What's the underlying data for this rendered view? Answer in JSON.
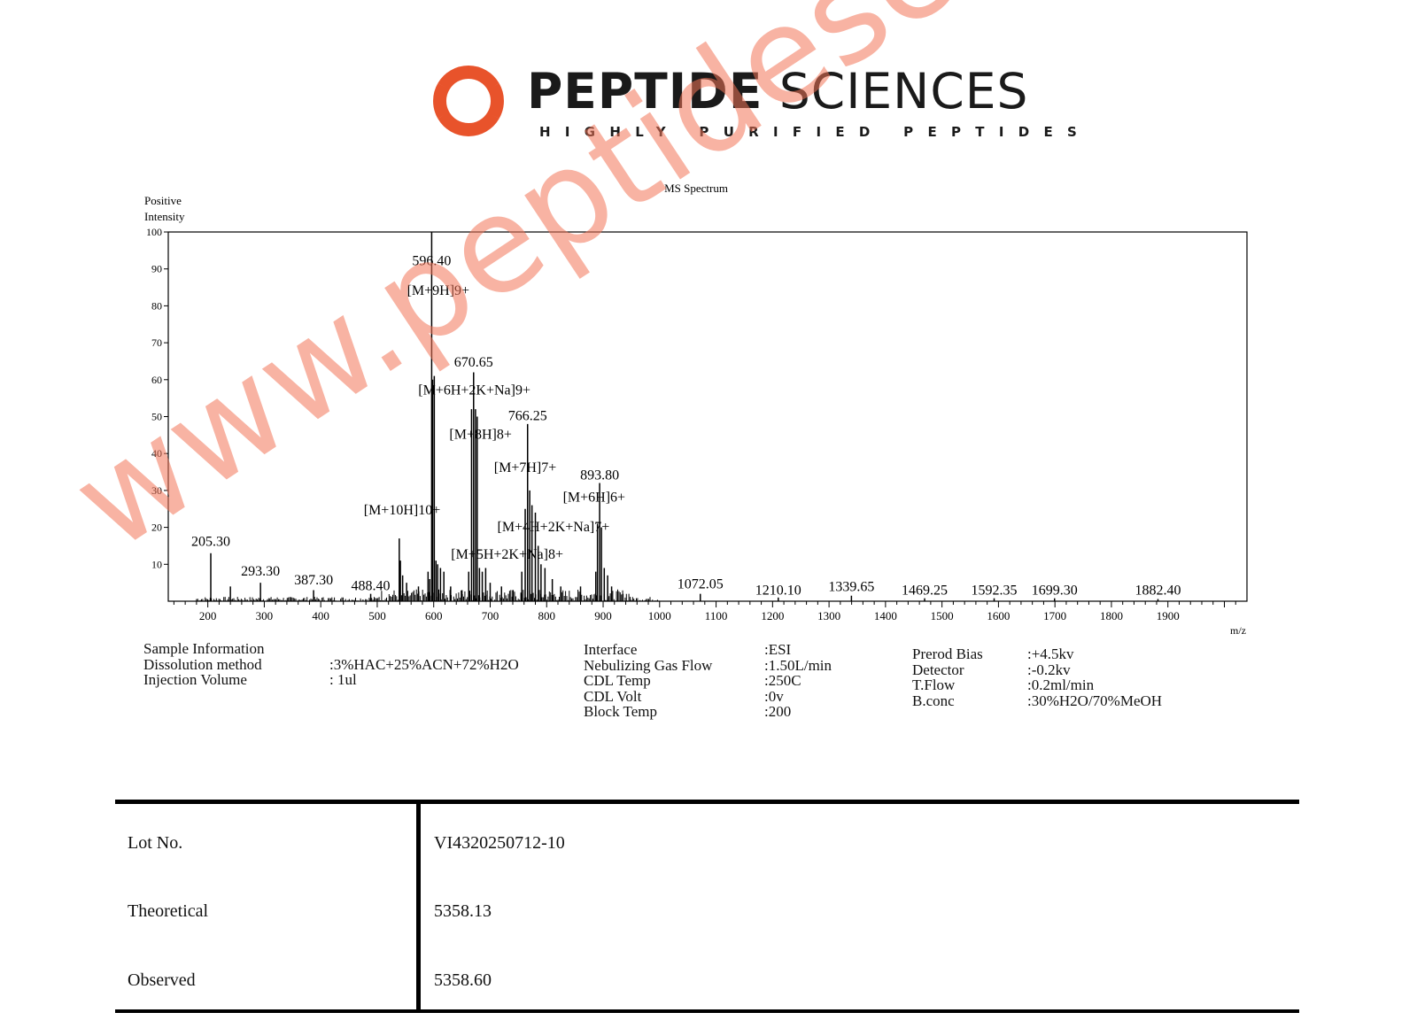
{
  "brand": {
    "name_bold": "PEPTIDE",
    "name_light": "SCIENCES",
    "tagline": "HIGHLY PURIFIED PEPTIDES",
    "logo_color": "#e8532b"
  },
  "chart_data": {
    "type": "line",
    "title": "MS Spectrum",
    "ylabel": "Positive Intensity",
    "xlabel": "m/z",
    "xlim": [
      130,
      2040
    ],
    "ylim": [
      0,
      100
    ],
    "xticks": [
      200,
      300,
      400,
      500,
      600,
      700,
      800,
      900,
      1000,
      1100,
      1200,
      1300,
      1400,
      1500,
      1600,
      1700,
      1800,
      1900
    ],
    "yticks": [
      10,
      20,
      30,
      40,
      50,
      60,
      70,
      80,
      90,
      100
    ],
    "peaks": [
      {
        "x": 205.3,
        "y": 13
      },
      {
        "x": 240,
        "y": 4
      },
      {
        "x": 293.3,
        "y": 5
      },
      {
        "x": 387.3,
        "y": 3
      },
      {
        "x": 488.4,
        "y": 2
      },
      {
        "x": 539,
        "y": 17
      },
      {
        "x": 541,
        "y": 11
      },
      {
        "x": 545,
        "y": 7
      },
      {
        "x": 552,
        "y": 5
      },
      {
        "x": 573,
        "y": 4
      },
      {
        "x": 590,
        "y": 8
      },
      {
        "x": 593,
        "y": 6
      },
      {
        "x": 596.4,
        "y": 100
      },
      {
        "x": 598,
        "y": 60
      },
      {
        "x": 601,
        "y": 61
      },
      {
        "x": 604,
        "y": 11
      },
      {
        "x": 607,
        "y": 10
      },
      {
        "x": 612,
        "y": 9
      },
      {
        "x": 618,
        "y": 8
      },
      {
        "x": 630,
        "y": 4
      },
      {
        "x": 650,
        "y": 3
      },
      {
        "x": 662,
        "y": 8
      },
      {
        "x": 667,
        "y": 52
      },
      {
        "x": 670.65,
        "y": 62
      },
      {
        "x": 674,
        "y": 52
      },
      {
        "x": 677,
        "y": 50
      },
      {
        "x": 681,
        "y": 9
      },
      {
        "x": 686,
        "y": 8
      },
      {
        "x": 692,
        "y": 9
      },
      {
        "x": 700,
        "y": 5
      },
      {
        "x": 720,
        "y": 4
      },
      {
        "x": 740,
        "y": 3
      },
      {
        "x": 756,
        "y": 8
      },
      {
        "x": 762,
        "y": 25
      },
      {
        "x": 766.25,
        "y": 48
      },
      {
        "x": 770,
        "y": 30
      },
      {
        "x": 774,
        "y": 26
      },
      {
        "x": 780,
        "y": 24
      },
      {
        "x": 785,
        "y": 15
      },
      {
        "x": 790,
        "y": 10
      },
      {
        "x": 797,
        "y": 9
      },
      {
        "x": 810,
        "y": 6
      },
      {
        "x": 825,
        "y": 4
      },
      {
        "x": 860,
        "y": 4
      },
      {
        "x": 887,
        "y": 8
      },
      {
        "x": 890,
        "y": 21
      },
      {
        "x": 893.8,
        "y": 32
      },
      {
        "x": 897,
        "y": 20
      },
      {
        "x": 902,
        "y": 9
      },
      {
        "x": 908,
        "y": 7
      },
      {
        "x": 915,
        "y": 4
      },
      {
        "x": 935,
        "y": 2
      },
      {
        "x": 1072.05,
        "y": 2
      },
      {
        "x": 1210.1,
        "y": 1
      },
      {
        "x": 1339.65,
        "y": 1.5
      },
      {
        "x": 1469.25,
        "y": 0.8
      },
      {
        "x": 1592.35,
        "y": 0.8
      },
      {
        "x": 1699.3,
        "y": 0.8
      },
      {
        "x": 1882.4,
        "y": 0.6
      }
    ],
    "annotations": [
      {
        "text": "205.30",
        "x": 205.3,
        "y": 15
      },
      {
        "text": "293.30",
        "x": 293.3,
        "y": 7
      },
      {
        "text": "387.30",
        "x": 387.3,
        "y": 4.5
      },
      {
        "text": "488.40",
        "x": 488.4,
        "y": 3
      },
      {
        "text": "596.40",
        "x": 596.4,
        "y": 91
      },
      {
        "text": "[M+9H]9+",
        "x": 608,
        "y": 83
      },
      {
        "text": "670.65",
        "x": 670.65,
        "y": 63.5
      },
      {
        "text": "[M+6H+2K+Na]9+",
        "x": 672,
        "y": 56
      },
      {
        "text": "[M+8H]8+",
        "x": 683,
        "y": 44
      },
      {
        "text": "766.25",
        "x": 766.25,
        "y": 49
      },
      {
        "text": "[M+7H]7+",
        "x": 762,
        "y": 35
      },
      {
        "text": "893.80",
        "x": 893.8,
        "y": 33
      },
      {
        "text": "[M+6H]6+",
        "x": 884,
        "y": 27
      },
      {
        "text": "[M+10H]10+",
        "x": 544,
        "y": 23.5
      },
      {
        "text": "[M+4H+2K+Na]7+",
        "x": 812,
        "y": 19
      },
      {
        "text": "[M+5H+2K+Na]8+",
        "x": 730,
        "y": 11.5
      },
      {
        "text": "1072.05",
        "x": 1072.05,
        "y": 3.5
      },
      {
        "text": "1210.10",
        "x": 1210.1,
        "y": 1.8
      },
      {
        "text": "1339.65",
        "x": 1339.65,
        "y": 2.8
      },
      {
        "text": "1469.25",
        "x": 1469.25,
        "y": 1.8
      },
      {
        "text": "1592.35",
        "x": 1592.35,
        "y": 1.8
      },
      {
        "text": "1699.30",
        "x": 1699.3,
        "y": 1.8
      },
      {
        "text": "1882.40",
        "x": 1882.4,
        "y": 1.8
      }
    ],
    "grid": false
  },
  "sample_info": {
    "labels": [
      "Sample Information",
      "Dissolution method",
      "Injection Volume"
    ],
    "values": [
      "",
      ":3%HAC+25%ACN+72%H2O",
      ": 1ul"
    ]
  },
  "instrument_info": {
    "labels": [
      "Interface",
      "Nebulizing Gas Flow",
      "CDL Temp",
      "CDL Volt",
      "Block Temp"
    ],
    "values": [
      ":ESI",
      ":1.50L/min",
      ":250C",
      ":0v",
      ":200"
    ]
  },
  "detector_info": {
    "labels": [
      "Prerod Bias",
      "Detector",
      "T.Flow",
      "B.conc"
    ],
    "values": [
      ":+4.5kv",
      ":-0.2kv",
      ":0.2ml/min",
      ":30%H2O/70%MeOH"
    ]
  },
  "summary": {
    "rows": [
      {
        "label": "Lot No.",
        "value": "VI4320250712-10"
      },
      {
        "label": "Theoretical",
        "value": "5358.13"
      },
      {
        "label": "Observed",
        "value": "5358.60"
      }
    ]
  },
  "watermark": "www.peptidesciences.com"
}
